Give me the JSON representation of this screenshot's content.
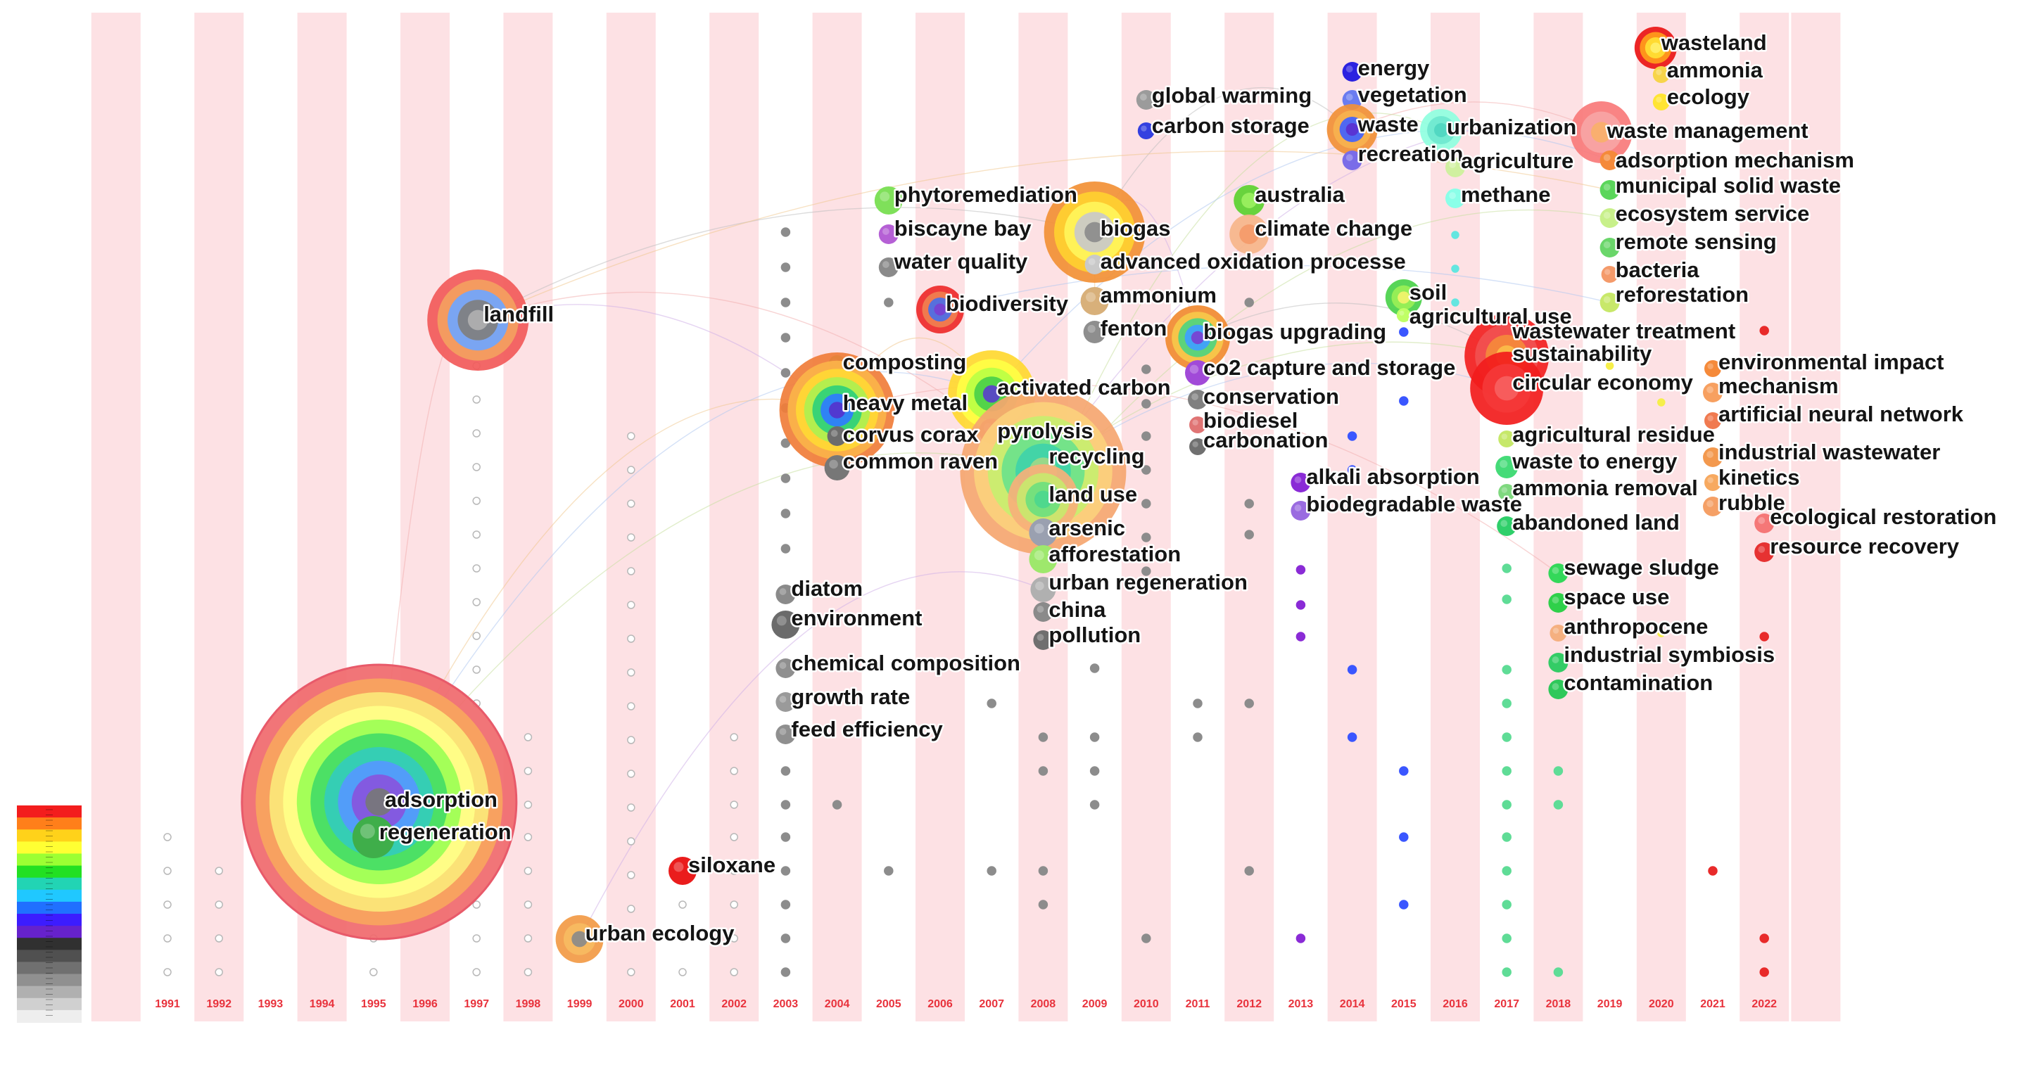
{
  "chart_data": {
    "type": "scatter",
    "title": "",
    "xlabel": "",
    "ylabel": "",
    "years": [
      "1991",
      "1992",
      "1993",
      "1994",
      "1995",
      "1996",
      "1997",
      "1998",
      "1999",
      "2000",
      "2001",
      "2002",
      "2003",
      "2004",
      "2005",
      "2006",
      "2007",
      "2008",
      "2009",
      "2010",
      "2011",
      "2012",
      "2013",
      "2014",
      "2015",
      "2016",
      "2017",
      "2018",
      "2019",
      "2020",
      "2021",
      "2022"
    ],
    "color_scale": [
      "#f31d1d",
      "#ff7f1a",
      "#ffd21a",
      "#ffff33",
      "#9cff33",
      "#22e022",
      "#22d4b4",
      "#20c8ff",
      "#2070ff",
      "#3c1cff",
      "#6622cc",
      "#303030",
      "#505050",
      "#707070",
      "#909090",
      "#b0b0b0",
      "#d0d0d0",
      "#eeeeee"
    ],
    "keywords": [
      {
        "label": "adsorption",
        "year": 1995,
        "size": "largest"
      },
      {
        "label": "regeneration",
        "year": 1995,
        "size": "small"
      },
      {
        "label": "landfill",
        "year": 1997,
        "size": "large"
      },
      {
        "label": "urban ecology",
        "year": 1999,
        "size": "medium"
      },
      {
        "label": "siloxane",
        "year": 2001,
        "size": "small"
      },
      {
        "label": "chemical composition",
        "year": 2003,
        "size": "small"
      },
      {
        "label": "growth rate",
        "year": 2003,
        "size": "small"
      },
      {
        "label": "feed efficiency",
        "year": 2003,
        "size": "small"
      },
      {
        "label": "diatom",
        "year": 2003,
        "size": "small"
      },
      {
        "label": "environment",
        "year": 2003,
        "size": "small"
      },
      {
        "label": "composting",
        "year": 2004,
        "size": "small"
      },
      {
        "label": "heavy metal",
        "year": 2004,
        "size": "large"
      },
      {
        "label": "corvus corax",
        "year": 2004,
        "size": "small"
      },
      {
        "label": "common raven",
        "year": 2004,
        "size": "small"
      },
      {
        "label": "phytoremediation",
        "year": 2005,
        "size": "small"
      },
      {
        "label": "biscayne bay",
        "year": 2005,
        "size": "small"
      },
      {
        "label": "water quality",
        "year": 2005,
        "size": "small"
      },
      {
        "label": "biodiversity",
        "year": 2006,
        "size": "medium"
      },
      {
        "label": "activated carbon",
        "year": 2007,
        "size": "large"
      },
      {
        "label": "pyrolysis",
        "year": 2007,
        "size": "small"
      },
      {
        "label": "recycling",
        "year": 2008,
        "size": "largest"
      },
      {
        "label": "land use",
        "year": 2008,
        "size": "medium"
      },
      {
        "label": "arsenic",
        "year": 2008,
        "size": "small"
      },
      {
        "label": "afforestation",
        "year": 2008,
        "size": "small"
      },
      {
        "label": "urban regeneration",
        "year": 2008,
        "size": "small"
      },
      {
        "label": "china",
        "year": 2008,
        "size": "small"
      },
      {
        "label": "pollution",
        "year": 2008,
        "size": "small"
      },
      {
        "label": "biogas",
        "year": 2009,
        "size": "large"
      },
      {
        "label": "advanced oxidation processe",
        "year": 2009,
        "size": "small"
      },
      {
        "label": "ammonium",
        "year": 2009,
        "size": "small"
      },
      {
        "label": "fenton",
        "year": 2009,
        "size": "small"
      },
      {
        "label": "global warming",
        "year": 2010,
        "size": "small"
      },
      {
        "label": "carbon storage",
        "year": 2010,
        "size": "small"
      },
      {
        "label": "biogas upgrading",
        "year": 2011,
        "size": "medium"
      },
      {
        "label": "co2 capture and storage",
        "year": 2011,
        "size": "small"
      },
      {
        "label": "conservation",
        "year": 2011,
        "size": "small"
      },
      {
        "label": "biodiesel",
        "year": 2011,
        "size": "small"
      },
      {
        "label": "carbonation",
        "year": 2011,
        "size": "small"
      },
      {
        "label": "australia",
        "year": 2012,
        "size": "small"
      },
      {
        "label": "climate change",
        "year": 2012,
        "size": "small"
      },
      {
        "label": "alkali absorption",
        "year": 2013,
        "size": "small"
      },
      {
        "label": "biodegradable waste",
        "year": 2013,
        "size": "small"
      },
      {
        "label": "energy",
        "year": 2014,
        "size": "small"
      },
      {
        "label": "vegetation",
        "year": 2014,
        "size": "small"
      },
      {
        "label": "waste",
        "year": 2014,
        "size": "medium"
      },
      {
        "label": "recreation",
        "year": 2014,
        "size": "small"
      },
      {
        "label": "soil",
        "year": 2015,
        "size": "small"
      },
      {
        "label": "agricultural use",
        "year": 2015,
        "size": "small"
      },
      {
        "label": "urbanization",
        "year": 2016,
        "size": "small"
      },
      {
        "label": "agriculture",
        "year": 2016,
        "size": "small"
      },
      {
        "label": "methane",
        "year": 2016,
        "size": "small"
      },
      {
        "label": "wastewater treatment",
        "year": 2017,
        "size": "small"
      },
      {
        "label": "sustainability",
        "year": 2017,
        "size": "large"
      },
      {
        "label": "circular economy",
        "year": 2017,
        "size": "medium"
      },
      {
        "label": "agricultural residue",
        "year": 2017,
        "size": "small"
      },
      {
        "label": "waste to energy",
        "year": 2017,
        "size": "small"
      },
      {
        "label": "ammonia removal",
        "year": 2017,
        "size": "small"
      },
      {
        "label": "abandoned land",
        "year": 2017,
        "size": "small"
      },
      {
        "label": "sewage sludge",
        "year": 2018,
        "size": "small"
      },
      {
        "label": "space use",
        "year": 2018,
        "size": "small"
      },
      {
        "label": "anthropocene",
        "year": 2018,
        "size": "small"
      },
      {
        "label": "industrial symbiosis",
        "year": 2018,
        "size": "small"
      },
      {
        "label": "contamination",
        "year": 2018,
        "size": "small"
      },
      {
        "label": "waste management",
        "year": 2019,
        "size": "medium"
      },
      {
        "label": "adsorption mechanism",
        "year": 2019,
        "size": "small"
      },
      {
        "label": "municipal solid waste",
        "year": 2019,
        "size": "small"
      },
      {
        "label": "ecosystem service",
        "year": 2019,
        "size": "small"
      },
      {
        "label": "remote sensing",
        "year": 2019,
        "size": "small"
      },
      {
        "label": "bacteria",
        "year": 2019,
        "size": "small"
      },
      {
        "label": "reforestation",
        "year": 2019,
        "size": "small"
      },
      {
        "label": "wasteland",
        "year": 2020,
        "size": "small"
      },
      {
        "label": "ammonia",
        "year": 2020,
        "size": "small"
      },
      {
        "label": "ecology",
        "year": 2020,
        "size": "small"
      },
      {
        "label": "environmental impact",
        "year": 2021,
        "size": "small"
      },
      {
        "label": "mechanism",
        "year": 2021,
        "size": "small"
      },
      {
        "label": "artificial neural network",
        "year": 2021,
        "size": "small"
      },
      {
        "label": "industrial wastewater",
        "year": 2021,
        "size": "small"
      },
      {
        "label": "kinetics",
        "year": 2021,
        "size": "small"
      },
      {
        "label": "rubble",
        "year": 2021,
        "size": "small"
      },
      {
        "label": "ecological restoration",
        "year": 2022,
        "size": "small"
      },
      {
        "label": "resource recovery",
        "year": 2022,
        "size": "small"
      }
    ]
  }
}
